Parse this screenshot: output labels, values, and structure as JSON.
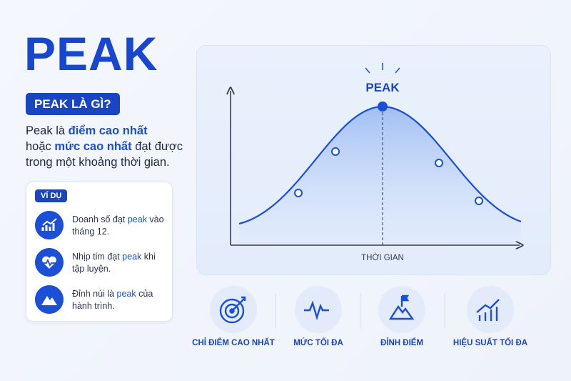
{
  "header": {
    "title": "PEAK",
    "badge": "PEAK LÀ GÌ?"
  },
  "definition": {
    "segments": [
      "Peak là ",
      "điểm cao nhất",
      " hoặc ",
      "mức cao nhất",
      " đạt được trong một khoảng thời gian."
    ]
  },
  "examples": {
    "label": "VÍ DỤ",
    "items": [
      {
        "segments": [
          "Doanh số đạt ",
          "peak",
          " vào tháng 12."
        ]
      },
      {
        "segments": [
          "Nhịp tim đạt ",
          "peak",
          " khi tập luyện."
        ]
      },
      {
        "segments": [
          "Đỉnh núi là ",
          "peak",
          " của hành trình."
        ]
      }
    ]
  },
  "diagram": {
    "peak_label": "PEAK",
    "x_axis_label": "THỜI GIAN"
  },
  "features": [
    {
      "label": "CHỈ ĐIỂM CAO NHẤT"
    },
    {
      "label": "MỨC TỐI ĐA"
    },
    {
      "label": "ĐỈNH ĐIỂM"
    },
    {
      "label": "HIỆU SUẤT TỐI ĐA"
    }
  ]
}
